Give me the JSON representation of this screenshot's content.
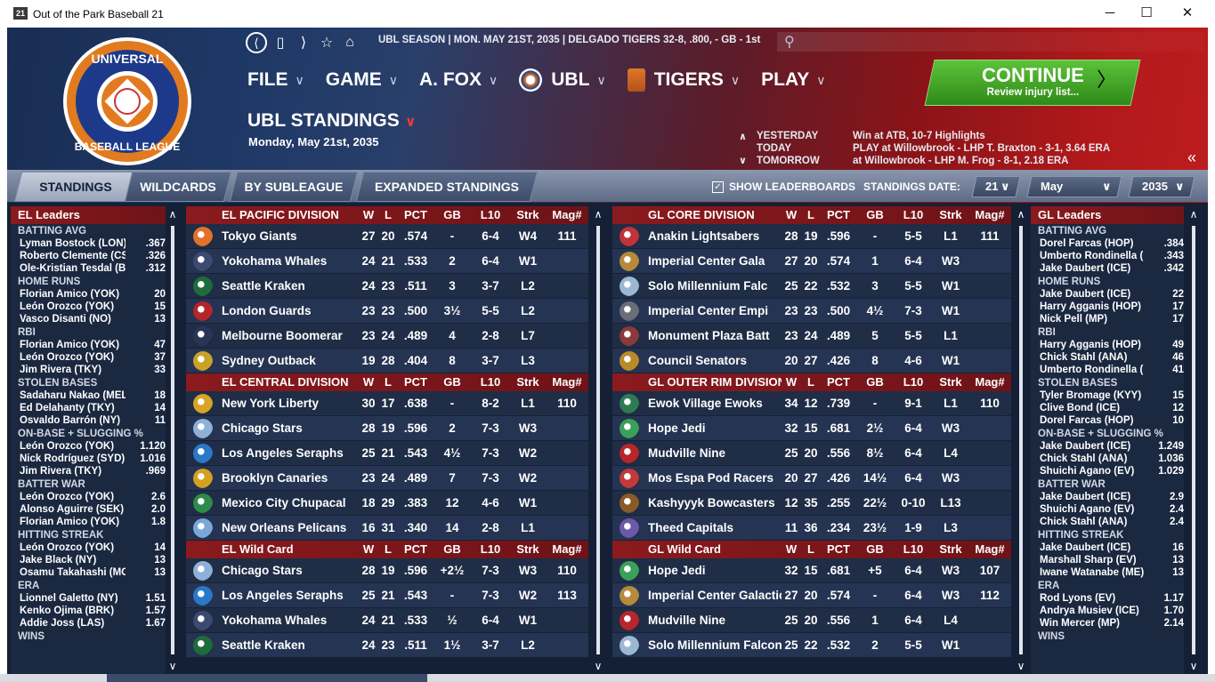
{
  "window": {
    "title": "Out of the Park Baseball 21",
    "app_icon": "21",
    "minimize": "─",
    "maximize": "☐",
    "close": "✕"
  },
  "logo": {
    "lettering": "UNIVERSAL BASEBALL LEAGUE",
    "icon": "ubl-logo"
  },
  "nav": {
    "back": "⟨",
    "page": "▯",
    "forward": "⟩",
    "star": "☆",
    "home": "⌂",
    "season_info": "UBL SEASON  |  MON. MAY 21ST, 2035  |  DELGADO TIGERS  32-8, .800, - GB - 1st",
    "search_icon": "⚲"
  },
  "menu": [
    {
      "label": "FILE",
      "chev": "∨"
    },
    {
      "label": "GAME",
      "chev": "∨"
    },
    {
      "label": "A. FOX",
      "chev": "∨"
    },
    {
      "label": "UBL",
      "chev": "∨"
    },
    {
      "label": "TIGERS",
      "chev": "∨"
    },
    {
      "label": "PLAY",
      "chev": "∨"
    }
  ],
  "page": {
    "title": "UBL STANDINGS",
    "title_chev": "∨",
    "date": "Monday, May 21st, 2035"
  },
  "continue": {
    "label": "CONTINUE",
    "sub": "Review injury list...",
    "arrow": "〉"
  },
  "schedule": {
    "up": "∧",
    "down": "∨",
    "collapse": "«",
    "rows": [
      {
        "label": "YESTERDAY",
        "text": "Win at ATB, 10-7     Highlights"
      },
      {
        "label": "TODAY",
        "text": "PLAY at Willowbrook - LHP T. Braxton - 3-1, 3.64 ERA"
      },
      {
        "label": "TOMORROW",
        "text": "at Willowbrook - LHP M. Frog - 8-1, 2.18 ERA"
      }
    ]
  },
  "tabs": [
    "STANDINGS",
    "WILDCARDS",
    "BY SUBLEAGUE",
    "EXPANDED STANDINGS"
  ],
  "options": {
    "show_leaderboards": "SHOW LEADERBOARDS",
    "check": "✓",
    "standings_date": "STANDINGS DATE:",
    "day": "21",
    "month": "May",
    "year": "2035",
    "chev": "∨"
  },
  "scroll": {
    "up": "∧",
    "down": "∨"
  },
  "el_leaders": {
    "title": "EL Leaders",
    "sections": [
      {
        "name": "BATTING AVG",
        "rows": [
          [
            "Lyman Bostock (LON)",
            ".367"
          ],
          [
            "Roberto Clemente (CS",
            ".326"
          ],
          [
            "Ole-Kristian Tesdal (BR",
            ".312"
          ]
        ]
      },
      {
        "name": "HOME RUNS",
        "rows": [
          [
            "Florian Amico (YOK)",
            "20"
          ],
          [
            "León Orozco (YOK)",
            "15"
          ],
          [
            "Vasco Disanti (NO)",
            "13"
          ]
        ]
      },
      {
        "name": "RBI",
        "rows": [
          [
            "Florian Amico (YOK)",
            "47"
          ],
          [
            "León Orozco (YOK)",
            "37"
          ],
          [
            "Jim Rivera (TKY)",
            "33"
          ]
        ]
      },
      {
        "name": "STOLEN BASES",
        "rows": [
          [
            "Sadaharu Nakao (MEL)",
            "18"
          ],
          [
            "Ed Delahanty (TKY)",
            "14"
          ],
          [
            "Osvaldo Barrón (NY)",
            "11"
          ]
        ]
      },
      {
        "name": "ON-BASE + SLUGGING %",
        "rows": [
          [
            "León Orozco (YOK)",
            "1.120"
          ],
          [
            "Nick Rodríguez (SYD)",
            "1.016"
          ],
          [
            "Jim Rivera (TKY)",
            ".969"
          ]
        ]
      },
      {
        "name": "BATTER WAR",
        "rows": [
          [
            "León Orozco (YOK)",
            "2.6"
          ],
          [
            "Alonso Aguirre (SEK)",
            "2.0"
          ],
          [
            "Florian Amico (YOK)",
            "1.8"
          ]
        ]
      },
      {
        "name": "HITTING STREAK",
        "rows": [
          [
            "León Orozco (YOK)",
            "14"
          ],
          [
            "Jake Black (NY)",
            "13"
          ],
          [
            "Osamu Takahashi (MC)",
            "13"
          ]
        ]
      },
      {
        "name": "ERA",
        "rows": [
          [
            "Lionnel Galetto (NY)",
            "1.51"
          ],
          [
            "Kenko Ojima (BRK)",
            "1.57"
          ],
          [
            "Addie Joss (LAS)",
            "1.67"
          ]
        ]
      },
      {
        "name": "WINS",
        "rows": []
      }
    ]
  },
  "gl_leaders": {
    "title": "GL Leaders",
    "sections": [
      {
        "name": "BATTING AVG",
        "rows": [
          [
            "Dorel Farcas (HOP)",
            ".384"
          ],
          [
            "Umberto Rondinella (M",
            ".343"
          ],
          [
            "Jake Daubert (ICE)",
            ".342"
          ]
        ]
      },
      {
        "name": "HOME RUNS",
        "rows": [
          [
            "Jake Daubert (ICE)",
            "22"
          ],
          [
            "Harry Agganis (HOP)",
            "17"
          ],
          [
            "Nick Pell (MP)",
            "17"
          ]
        ]
      },
      {
        "name": "RBI",
        "rows": [
          [
            "Harry Agganis (HOP)",
            "49"
          ],
          [
            "Chick Stahl (ANA)",
            "46"
          ],
          [
            "Umberto Rondinella (M",
            "41"
          ]
        ]
      },
      {
        "name": "STOLEN BASES",
        "rows": [
          [
            "Tyler Bromage (KYY)",
            "15"
          ],
          [
            "Clive Bond (ICE)",
            "12"
          ],
          [
            "Dorel Farcas (HOP)",
            "10"
          ]
        ]
      },
      {
        "name": "ON-BASE + SLUGGING %",
        "rows": [
          [
            "Jake Daubert (ICE)",
            "1.249"
          ],
          [
            "Chick Stahl (ANA)",
            "1.036"
          ],
          [
            "Shuichi Agano (EV)",
            "1.029"
          ]
        ]
      },
      {
        "name": "BATTER WAR",
        "rows": [
          [
            "Jake Daubert (ICE)",
            "2.9"
          ],
          [
            "Shuichi Agano (EV)",
            "2.4"
          ],
          [
            "Chick Stahl (ANA)",
            "2.4"
          ]
        ]
      },
      {
        "name": "HITTING STREAK",
        "rows": [
          [
            "Jake Daubert (ICE)",
            "16"
          ],
          [
            "Marshall Sharp (EV)",
            "13"
          ],
          [
            "Iwane Watanabe (ME)",
            "13"
          ]
        ]
      },
      {
        "name": "ERA",
        "rows": [
          [
            "Rod Lyons (EV)",
            "1.17"
          ],
          [
            "Andrya Musiev (ICE)",
            "1.70"
          ],
          [
            "Win Mercer (MP)",
            "2.14"
          ]
        ]
      },
      {
        "name": "WINS",
        "rows": []
      }
    ]
  },
  "el_standings": [
    {
      "division": "EL PACIFIC DIVISION",
      "cols": [
        "W",
        "L",
        "PCT",
        "GB",
        "L10",
        "Strk",
        "Mag#"
      ],
      "teams": [
        {
          "name": "Tokyo Giants",
          "w": "27",
          "l": "20",
          "pct": ".574",
          "gb": "-",
          "l10": "6-4",
          "strk": "W4",
          "mag": "111",
          "color": "#e2722a",
          "icon": "tokyo-giants-logo"
        },
        {
          "name": "Yokohama Whales",
          "w": "24",
          "l": "21",
          "pct": ".533",
          "gb": "2",
          "l10": "6-4",
          "strk": "W1",
          "mag": "",
          "color": "#3c4a72",
          "icon": "yokohama-whales-logo"
        },
        {
          "name": "Seattle Kraken",
          "w": "24",
          "l": "23",
          "pct": ".511",
          "gb": "3",
          "l10": "3-7",
          "strk": "L2",
          "mag": "",
          "color": "#1f6b3c",
          "icon": "seattle-kraken-logo"
        },
        {
          "name": "London Guards",
          "w": "23",
          "l": "23",
          "pct": ".500",
          "gb": "3½",
          "l10": "5-5",
          "strk": "L2",
          "mag": "",
          "color": "#b3262a",
          "icon": "london-guards-logo"
        },
        {
          "name": "Melbourne Boomerar",
          "w": "23",
          "l": "24",
          "pct": ".489",
          "gb": "4",
          "l10": "2-8",
          "strk": "L7",
          "mag": "",
          "color": "#2a3556",
          "icon": "melbourne-logo"
        },
        {
          "name": "Sydney Outback",
          "w": "19",
          "l": "28",
          "pct": ".404",
          "gb": "8",
          "l10": "3-7",
          "strk": "L3",
          "mag": "",
          "color": "#c9a227",
          "icon": "sydney-outback-logo"
        }
      ]
    },
    {
      "division": "EL CENTRAL DIVISION",
      "cols": [
        "W",
        "L",
        "PCT",
        "GB",
        "L10",
        "Strk",
        "Mag#"
      ],
      "teams": [
        {
          "name": "New York Liberty",
          "w": "30",
          "l": "17",
          "pct": ".638",
          "gb": "-",
          "l10": "8-2",
          "strk": "L1",
          "mag": "110",
          "color": "#d8a326",
          "icon": "ny-liberty-logo"
        },
        {
          "name": "Chicago Stars",
          "w": "28",
          "l": "19",
          "pct": ".596",
          "gb": "2",
          "l10": "7-3",
          "strk": "W3",
          "mag": "",
          "color": "#8fb0d8",
          "icon": "chicago-stars-logo"
        },
        {
          "name": "Los Angeles Seraphs",
          "w": "25",
          "l": "21",
          "pct": ".543",
          "gb": "4½",
          "l10": "7-3",
          "strk": "W2",
          "mag": "",
          "color": "#2a78c8",
          "icon": "la-seraphs-logo"
        },
        {
          "name": "Brooklyn Canaries",
          "w": "23",
          "l": "24",
          "pct": ".489",
          "gb": "7",
          "l10": "7-3",
          "strk": "W2",
          "mag": "",
          "color": "#d6a01f",
          "icon": "brooklyn-canaries-logo"
        },
        {
          "name": "Mexico City Chupacal",
          "w": "18",
          "l": "29",
          "pct": ".383",
          "gb": "12",
          "l10": "4-6",
          "strk": "W1",
          "mag": "",
          "color": "#2e8a4b",
          "icon": "mexico-city-logo"
        },
        {
          "name": "New Orleans Pelicans",
          "w": "16",
          "l": "31",
          "pct": ".340",
          "gb": "14",
          "l10": "2-8",
          "strk": "L1",
          "mag": "",
          "color": "#7aa7d9",
          "icon": "no-pelicans-logo"
        }
      ]
    },
    {
      "division": "EL  Wild Card",
      "cols": [
        "W",
        "L",
        "PCT",
        "GB",
        "L10",
        "Strk",
        "Mag#"
      ],
      "teams": [
        {
          "name": "Chicago Stars",
          "w": "28",
          "l": "19",
          "pct": ".596",
          "gb": "+2½",
          "l10": "7-3",
          "strk": "W3",
          "mag": "110",
          "color": "#8fb0d8",
          "icon": "chicago-stars-logo"
        },
        {
          "name": "Los Angeles Seraphs",
          "w": "25",
          "l": "21",
          "pct": ".543",
          "gb": "-",
          "l10": "7-3",
          "strk": "W2",
          "mag": "113",
          "color": "#2a78c8",
          "icon": "la-seraphs-logo"
        },
        {
          "name": "Yokohama Whales",
          "w": "24",
          "l": "21",
          "pct": ".533",
          "gb": "½",
          "l10": "6-4",
          "strk": "W1",
          "mag": "",
          "color": "#3c4a72",
          "icon": "yokohama-whales-logo"
        },
        {
          "name": "Seattle Kraken",
          "w": "24",
          "l": "23",
          "pct": ".511",
          "gb": "1½",
          "l10": "3-7",
          "strk": "L2",
          "mag": "",
          "color": "#1f6b3c",
          "icon": "seattle-kraken-logo"
        }
      ]
    }
  ],
  "gl_standings": [
    {
      "division": "GL CORE DIVISION",
      "cols": [
        "W",
        "L",
        "PCT",
        "GB",
        "L10",
        "Strk",
        "Mag#"
      ],
      "teams": [
        {
          "name": "Anakin Lightsabers",
          "w": "28",
          "l": "19",
          "pct": ".596",
          "gb": "-",
          "l10": "5-5",
          "strk": "L1",
          "mag": "111",
          "color": "#c2323a",
          "icon": "anakin-lightsabers-logo"
        },
        {
          "name": "Imperial Center Gala",
          "w": "27",
          "l": "20",
          "pct": ".574",
          "gb": "1",
          "l10": "6-4",
          "strk": "W3",
          "mag": "",
          "color": "#b58a3a",
          "icon": "imperial-center-galactic-logo"
        },
        {
          "name": "Solo Millennium Falc",
          "w": "25",
          "l": "22",
          "pct": ".532",
          "gb": "3",
          "l10": "5-5",
          "strk": "W1",
          "mag": "",
          "color": "#9bb7d4",
          "icon": "solo-falcons-logo"
        },
        {
          "name": "Imperial Center Empi",
          "w": "23",
          "l": "23",
          "pct": ".500",
          "gb": "4½",
          "l10": "7-3",
          "strk": "W1",
          "mag": "",
          "color": "#6a6e78",
          "icon": "imperial-center-empire-logo"
        },
        {
          "name": "Monument Plaza Batt",
          "w": "23",
          "l": "24",
          "pct": ".489",
          "gb": "5",
          "l10": "5-5",
          "strk": "L1",
          "mag": "",
          "color": "#8a3a3a",
          "icon": "monument-plaza-logo"
        },
        {
          "name": "Council Senators",
          "w": "20",
          "l": "27",
          "pct": ".426",
          "gb": "8",
          "l10": "4-6",
          "strk": "W1",
          "mag": "",
          "color": "#b88a2a",
          "icon": "council-senators-logo"
        }
      ]
    },
    {
      "division": "GL OUTER RIM DIVISION",
      "cols": [
        "W",
        "L",
        "PCT",
        "GB",
        "L10",
        "Strk",
        "Mag#"
      ],
      "teams": [
        {
          "name": "Ewok Village Ewoks",
          "w": "34",
          "l": "12",
          "pct": ".739",
          "gb": "-",
          "l10": "9-1",
          "strk": "L1",
          "mag": "110",
          "color": "#2f7a52",
          "icon": "ewok-village-logo"
        },
        {
          "name": "Hope Jedi",
          "w": "32",
          "l": "15",
          "pct": ".681",
          "gb": "2½",
          "l10": "6-4",
          "strk": "W3",
          "mag": "",
          "color": "#3aa05a",
          "icon": "hope-jedi-logo"
        },
        {
          "name": "Mudville Nine",
          "w": "25",
          "l": "20",
          "pct": ".556",
          "gb": "8½",
          "l10": "6-4",
          "strk": "L4",
          "mag": "",
          "color": "#b8262c",
          "icon": "mudville-nine-logo"
        },
        {
          "name": "Mos Espa Pod Racers",
          "w": "20",
          "l": "27",
          "pct": ".426",
          "gb": "14½",
          "l10": "6-4",
          "strk": "W3",
          "mag": "",
          "color": "#c23a3a",
          "icon": "mos-espa-logo"
        },
        {
          "name": "Kashyyyk Bowcasters",
          "w": "12",
          "l": "35",
          "pct": ".255",
          "gb": "22½",
          "l10": "0-10",
          "strk": "L13",
          "mag": "",
          "color": "#8a5a2a",
          "icon": "kashyyyk-logo"
        },
        {
          "name": "Theed Capitals",
          "w": "11",
          "l": "36",
          "pct": ".234",
          "gb": "23½",
          "l10": "1-9",
          "strk": "L3",
          "mag": "",
          "color": "#6a5aa8",
          "icon": "theed-capitals-logo"
        }
      ]
    },
    {
      "division": "GL  Wild Card",
      "cols": [
        "W",
        "L",
        "PCT",
        "GB",
        "L10",
        "Strk",
        "Mag#"
      ],
      "teams": [
        {
          "name": "Hope Jedi",
          "w": "32",
          "l": "15",
          "pct": ".681",
          "gb": "+5",
          "l10": "6-4",
          "strk": "W3",
          "mag": "107",
          "color": "#3aa05a",
          "icon": "hope-jedi-logo"
        },
        {
          "name": "Imperial Center Galactic",
          "w": "27",
          "l": "20",
          "pct": ".574",
          "gb": "-",
          "l10": "6-4",
          "strk": "W3",
          "mag": "112",
          "color": "#b58a3a",
          "icon": "imperial-center-galactic-logo"
        },
        {
          "name": "Mudville Nine",
          "w": "25",
          "l": "20",
          "pct": ".556",
          "gb": "1",
          "l10": "6-4",
          "strk": "L4",
          "mag": "",
          "color": "#b8262c",
          "icon": "mudville-nine-logo"
        },
        {
          "name": "Solo Millennium Falcons",
          "w": "25",
          "l": "22",
          "pct": ".532",
          "gb": "2",
          "l10": "5-5",
          "strk": "W1",
          "mag": "",
          "color": "#9bb7d4",
          "icon": "solo-falcons-logo"
        }
      ]
    }
  ]
}
